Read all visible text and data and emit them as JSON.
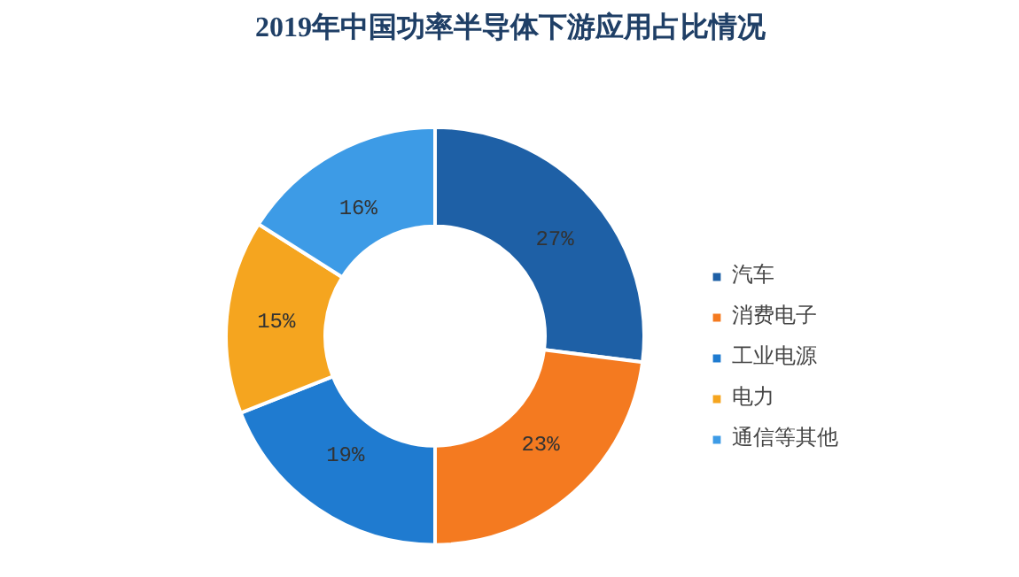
{
  "chart_data": {
    "type": "donut",
    "title": "2019年中国功率半导体下游应用占比情况",
    "categories": [
      "汽车",
      "消费电子",
      "工业电源",
      "电力",
      "通信等其他"
    ],
    "values": [
      27,
      23,
      19,
      15,
      16
    ],
    "colors": [
      "#1e60a6",
      "#f47a20",
      "#1f7bd0",
      "#f5a51f",
      "#3d9be6"
    ],
    "value_labels": [
      "27%",
      "23%",
      "19%",
      "15%",
      "16%"
    ],
    "legend": "right"
  }
}
